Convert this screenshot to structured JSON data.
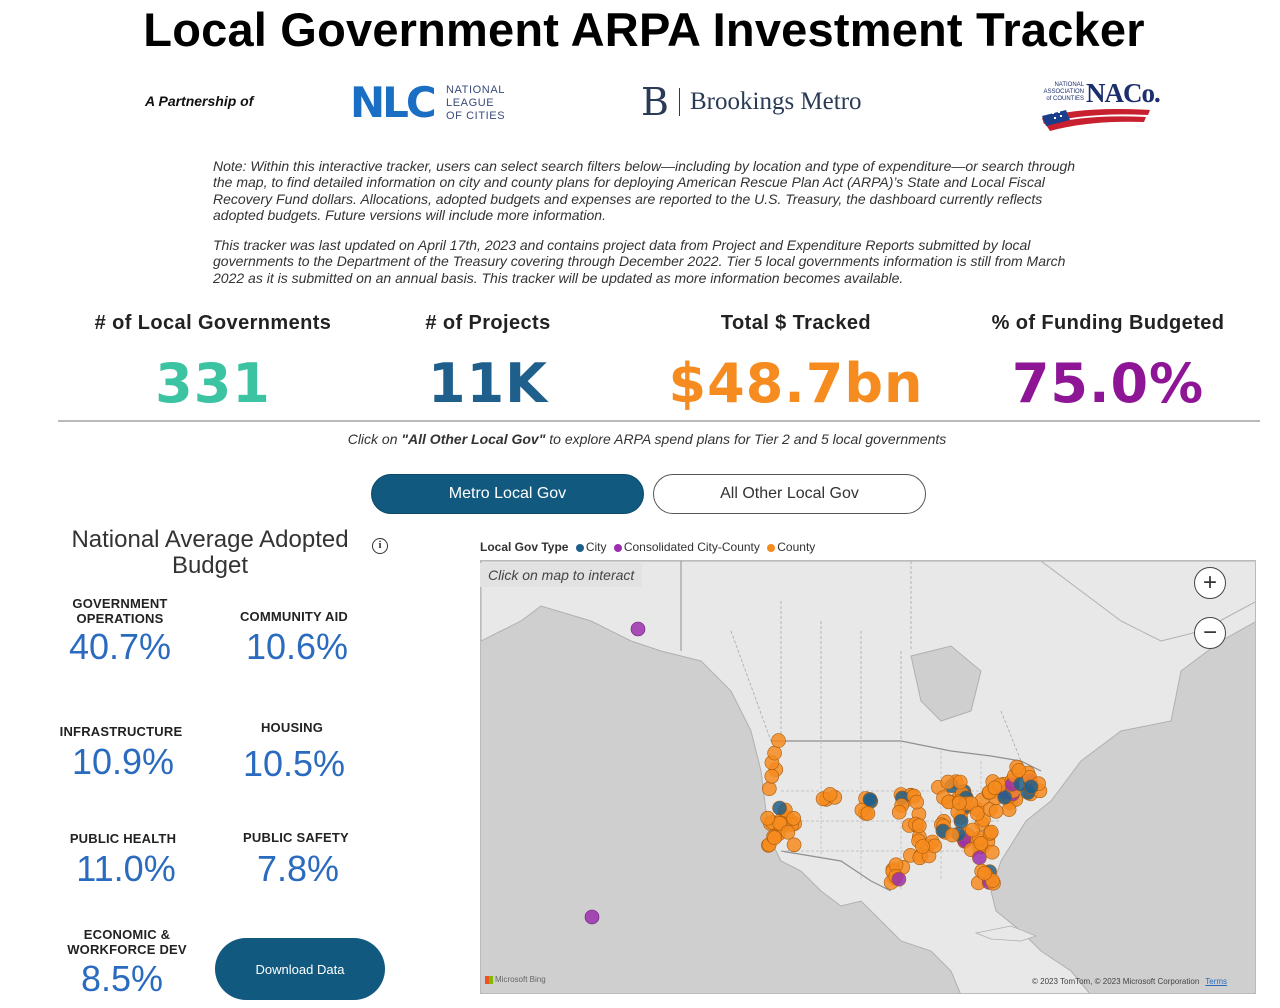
{
  "title": "Local Government ARPA Investment Tracker",
  "partnership": {
    "label": "A Partnership of",
    "nlc": {
      "mark": "NLC",
      "text": "NATIONAL\nLEAGUE\nOF CITIES"
    },
    "brookings": {
      "mark": "B",
      "text": "Brookings Metro"
    },
    "naco": {
      "small_text": "NATIONAL\nASSOCIATION\nof COUNTIES",
      "mark": "NACo."
    }
  },
  "notes": [
    "Note: Within this interactive tracker, users can select search filters below—including by location and type of expenditure—or search through the map, to find detailed information on city and county plans for deploying American Rescue Plan Act (ARPA)’s State and Local Fiscal Recovery Fund dollars. Allocations, adopted budgets and expenses are reported to the U.S. Treasury, the dashboard currently reflects adopted budgets. Future versions will include more information.",
    "This tracker was last updated on April 17th, 2023 and contains project data from Project and Expenditure Reports submitted by local governments to the Department of the Treasury covering through December 2022. Tier 5 local governments information is still from March 2022 as it is submitted on an annual basis. This tracker will be updated as more information becomes available."
  ],
  "kpis": [
    {
      "label": "# of Local Governments",
      "value": "331",
      "color": "#3cc3a2"
    },
    {
      "label": "# of Projects",
      "value": "11K",
      "color": "#1f5f8b"
    },
    {
      "label": "Total $ Tracked",
      "value": "$48.7bn",
      "color": "#f68b1f"
    },
    {
      "label": "% of Funding Budgeted",
      "value": "75.0%",
      "color": "#8e1696"
    }
  ],
  "click_hint": {
    "prefix": "Click on ",
    "emphasis": "\"All Other Local Gov\"",
    "suffix": " to explore ARPA spend plans for Tier 2 and 5 local governments"
  },
  "toggle": {
    "metro": "Metro Local Gov",
    "other": "All Other Local Gov",
    "selected": "metro"
  },
  "budget": {
    "title": "National Average Adopted Budget",
    "info_icon": "info-icon",
    "categories": [
      {
        "label": "GOVERNMENT\nOPERATIONS",
        "value": "40.7%"
      },
      {
        "label": "COMMUNITY AID",
        "value": "10.6%"
      },
      {
        "label": "INFRASTRUCTURE",
        "value": "10.9%"
      },
      {
        "label": "HOUSING",
        "value": "10.5%"
      },
      {
        "label": "PUBLIC HEALTH",
        "value": "11.0%"
      },
      {
        "label": "PUBLIC SAFETY",
        "value": "7.8%"
      },
      {
        "label": "ECONOMIC &\nWORKFORCE DEV",
        "value": "8.5%"
      }
    ],
    "download_label": "Download Data"
  },
  "map": {
    "legend_title": "Local Gov Type",
    "legend_items": [
      {
        "label": "City",
        "color": "#1f5f8b"
      },
      {
        "label": "Consolidated City-County",
        "color": "#9b2fae"
      },
      {
        "label": "County",
        "color": "#f68b1f"
      }
    ],
    "hint": "Click on map to interact",
    "zoom_in": "+",
    "zoom_out": "−",
    "bing": "Microsoft Bing",
    "credit": "© 2023 TomTom, © 2023 Microsoft Corporation",
    "terms": "Terms"
  }
}
